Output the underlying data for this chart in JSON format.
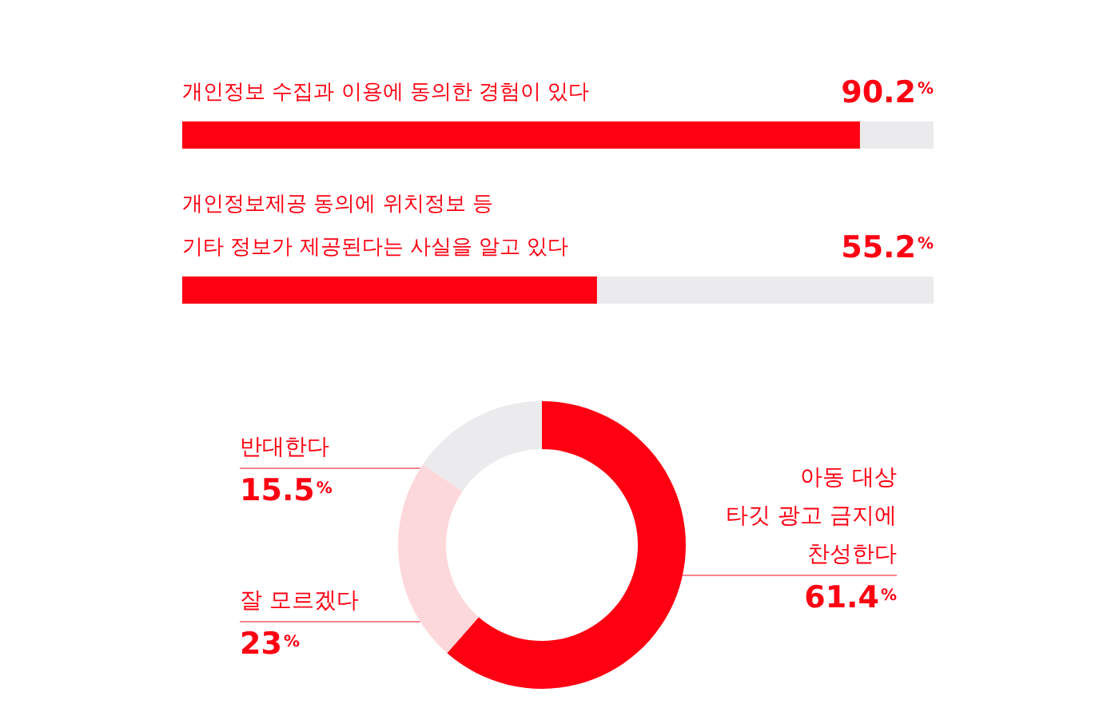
{
  "chart_data": [
    {
      "type": "bar",
      "orientation": "horizontal",
      "categories": [
        "개인정보 수집과 이용에 동의한 경험이 있다",
        "개인정보제공 동의에 위치정보 등\n기타 정보가 제공된다는 사실을 알고 있다"
      ],
      "values": [
        90.2,
        55.2
      ],
      "color": "#fe0012",
      "value_labels": [
        "90.2%",
        "55.2%"
      ],
      "xlim": [
        0,
        100
      ],
      "tick_labels": "y"
    },
    {
      "type": "donut",
      "categories": [
        "아동 대상\n타깃 광고 금지에\n찬성한다",
        "잘 모르겠다",
        "반대한다"
      ],
      "values": [
        61.4,
        23,
        15.5
      ],
      "colors": [
        "#fe0012",
        "#fdd8da",
        "#ebebed"
      ],
      "value_labels": [
        "61.4%",
        "23%",
        "15.5%"
      ]
    }
  ]
}
